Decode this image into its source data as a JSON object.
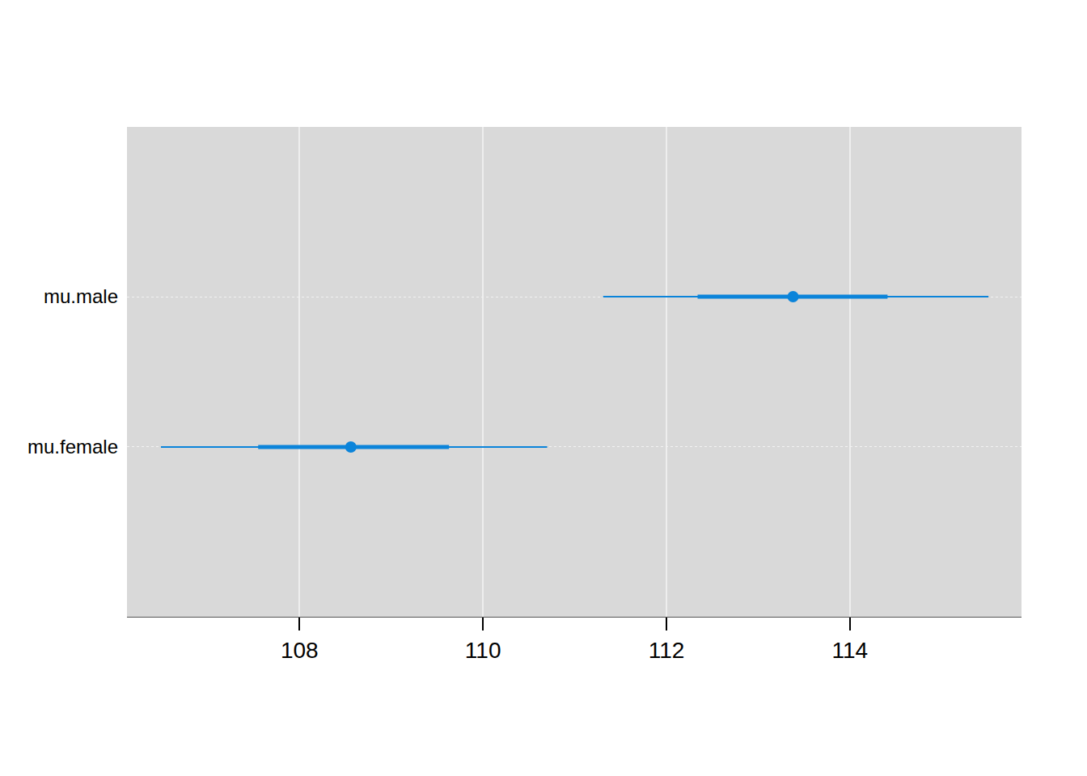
{
  "chart_data": {
    "type": "interval",
    "categories": [
      "mu.male",
      "mu.female"
    ],
    "values": [
      113.38,
      108.56
    ],
    "inner_low": [
      112.34,
      107.55
    ],
    "inner_high": [
      114.41,
      109.63
    ],
    "outer_low": [
      111.31,
      106.49
    ],
    "outer_high": [
      115.51,
      110.7
    ],
    "color": "#0b84da",
    "xlim": [
      106.12,
      115.87
    ],
    "xticks": [
      108,
      110,
      112,
      114
    ],
    "grid": true
  }
}
